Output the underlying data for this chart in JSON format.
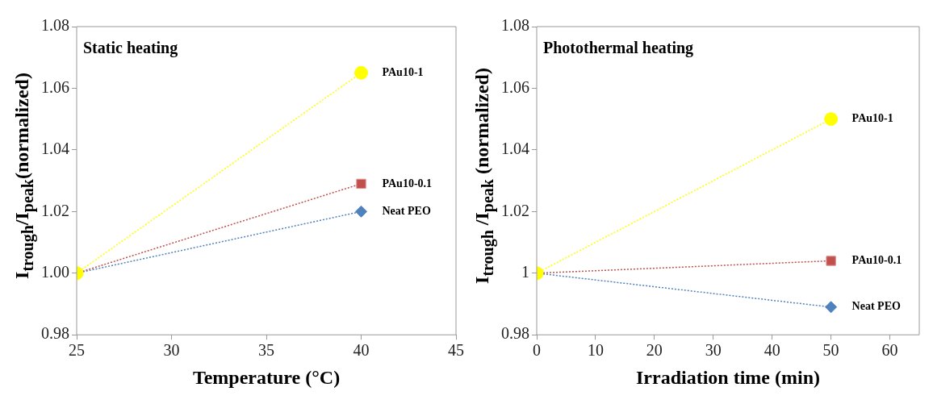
{
  "chart_data": [
    {
      "type": "line",
      "title": "Static heating",
      "xlabel": "Temperature (°C)",
      "ylabel": "I$_{trough}$/I$_{peak}$(normalized)",
      "xlim": [
        25,
        45
      ],
      "xticks": [
        25,
        30,
        35,
        40,
        45
      ],
      "ylim": [
        0.98,
        1.08
      ],
      "yticks": [
        0.98,
        {
          "value": 1,
          "label": "1.00"
        },
        1.02,
        1.04,
        1.06,
        1.08
      ],
      "grid": false,
      "legend": false,
      "line_style": "dotted",
      "x": [
        25,
        40
      ],
      "series": [
        {
          "name": "PAu10-1",
          "color": "#ffff00",
          "marker": "circle",
          "values": [
            1,
            1.065
          ]
        },
        {
          "name": "PAu10-0.1",
          "color": "#c0504d",
          "marker": "square",
          "values": [
            1,
            1.029
          ]
        },
        {
          "name": "Neat PEO",
          "color": "#4f81bd",
          "marker": "diamond",
          "values": [
            1,
            1.02
          ]
        }
      ]
    },
    {
      "type": "line",
      "title": "Photothermal heating",
      "xlabel": "Irradiation time (min)",
      "ylabel": "I$_{trough}$ /I$_{peak}$ (normalized)",
      "xlim": [
        0,
        65
      ],
      "xticks": [
        0,
        10,
        20,
        30,
        40,
        50,
        60
      ],
      "ylim": [
        0.98,
        1.08
      ],
      "yticks": [
        0.98,
        1,
        1.02,
        1.04,
        1.06,
        1.08
      ],
      "grid": false,
      "legend": false,
      "line_style": "dotted",
      "x": [
        0,
        50
      ],
      "series": [
        {
          "name": "PAu10-1",
          "color": "#ffff00",
          "marker": "circle",
          "values": [
            1,
            1.05
          ]
        },
        {
          "name": "PAu10-0.1",
          "color": "#c0504d",
          "marker": "square",
          "values": [
            1,
            1.004
          ]
        },
        {
          "name": "Neat PEO",
          "color": "#4f81bd",
          "marker": "diamond",
          "values": [
            1,
            0.989
          ]
        }
      ]
    }
  ]
}
